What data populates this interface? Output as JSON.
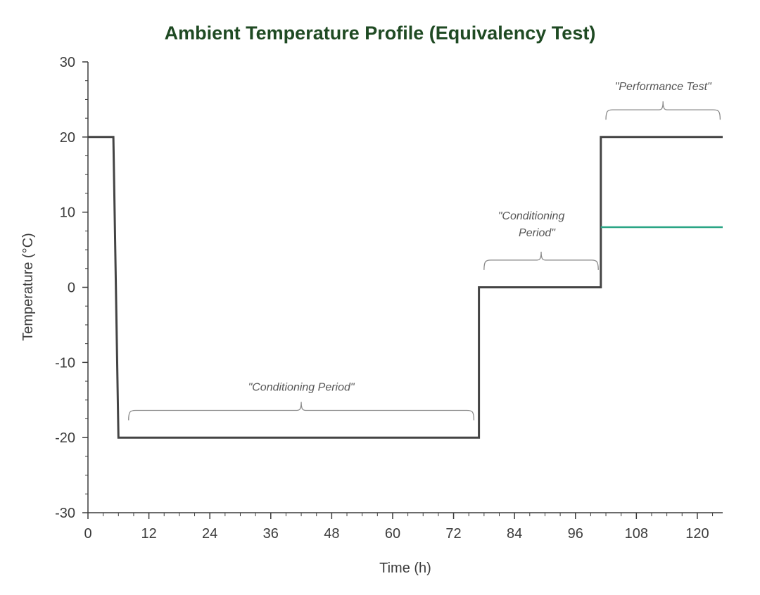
{
  "chart_data": {
    "type": "line",
    "title": "Ambient Temperature Profile (Equivalency Test)",
    "xlabel": "Time (h)",
    "ylabel": "Temperature (°C)",
    "xlim": [
      0,
      125
    ],
    "ylim": [
      -30,
      30
    ],
    "x_ticks": [
      0,
      12,
      24,
      36,
      48,
      60,
      72,
      84,
      96,
      108,
      120
    ],
    "y_ticks": [
      30,
      20,
      10,
      0,
      -10,
      -20,
      -30
    ],
    "grid": false,
    "series": [
      {
        "color": "#444444",
        "x": [
          0,
          5,
          6,
          77,
          77,
          101,
          101,
          125
        ],
        "y": [
          20,
          20,
          -20,
          -20,
          0,
          0,
          20,
          20
        ]
      },
      {
        "color": "#2aa585",
        "x": [
          101,
          125
        ],
        "y": [
          8,
          8
        ]
      }
    ],
    "annotations": [
      {
        "text": "\"Conditioning Period\"",
        "x_range": [
          8,
          76
        ],
        "y": -19
      },
      {
        "text": "\"Conditioning",
        "text2": "Period\"",
        "x_range": [
          78,
          100.5
        ],
        "y": 1
      },
      {
        "text": "\"Performance Test\"",
        "x_range": [
          102,
          124.5
        ],
        "y": 21
      }
    ]
  }
}
